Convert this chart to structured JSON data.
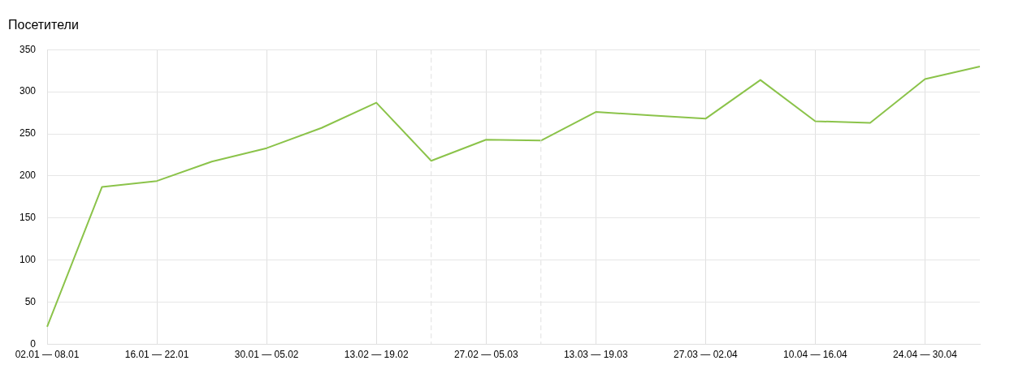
{
  "chart_data": {
    "type": "line",
    "title": "Посетители",
    "categories": [
      "02.01 — 08.01",
      null,
      "16.01 — 22.01",
      null,
      "30.01 — 05.02",
      null,
      "13.02 — 19.02",
      null,
      "27.02 — 05.03",
      null,
      "13.03 — 19.03",
      null,
      "27.03 — 02.04",
      null,
      "10.04 — 16.04",
      null,
      "24.04 — 30.04",
      null
    ],
    "series": [
      {
        "color": "#8bc34a",
        "values": [
          21,
          187,
          194,
          217,
          233,
          257,
          287,
          218,
          243,
          242,
          276,
          272,
          268,
          314,
          265,
          263,
          315,
          330
        ]
      }
    ],
    "ylim": [
      0,
      350
    ],
    "yticks": [
      0,
      50,
      100,
      150,
      200,
      250,
      300,
      350
    ],
    "grid": true,
    "marker": "none",
    "line_style": "solid",
    "legend": false
  }
}
